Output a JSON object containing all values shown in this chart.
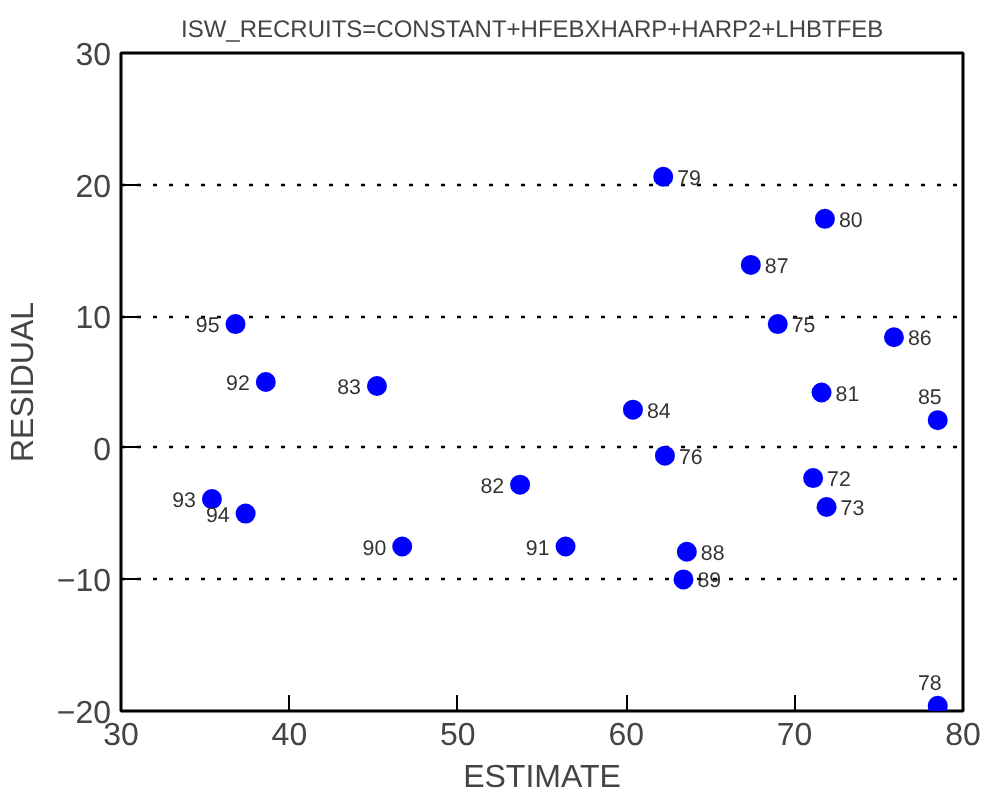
{
  "chart_data": {
    "type": "scatter",
    "title": "ISW_RECRUITS=CONSTANT+HFEBXHARP+HARP2+LHBTFEB",
    "xlabel": "ESTIMATE",
    "ylabel": "RESIDUAL",
    "xlim": [
      30,
      80
    ],
    "ylim": [
      -20,
      30
    ],
    "xticks": [
      30,
      40,
      50,
      60,
      70,
      80
    ],
    "yticks": [
      -20,
      -10,
      0,
      10,
      20,
      30
    ],
    "grid": "y",
    "marker": "circle",
    "series": [
      {
        "color": "#0000ff",
        "x": [
          36.8,
          38.6,
          45.2,
          35.4,
          37.4,
          46.7,
          62.2,
          71.8,
          67.4,
          69.0,
          75.9,
          71.6,
          78.5,
          60.4,
          62.3,
          53.7,
          71.1,
          71.9,
          56.4,
          63.6,
          63.4,
          78.5
        ],
        "values": [
          9.4,
          5.0,
          4.7,
          -3.9,
          -5.0,
          -7.5,
          20.6,
          17.4,
          13.9,
          9.4,
          8.4,
          4.2,
          2.1,
          2.9,
          -0.6,
          -2.8,
          -2.3,
          -4.5,
          -7.5,
          -7.9,
          -10.0,
          -19.6
        ]
      }
    ],
    "annotations": [
      {
        "text": "95",
        "x": 36.8,
        "y": 9.4
      },
      {
        "text": "92",
        "x": 38.6,
        "y": 5.0
      },
      {
        "text": "83",
        "x": 45.2,
        "y": 4.7
      },
      {
        "text": "93",
        "x": 35.4,
        "y": -3.9
      },
      {
        "text": "94",
        "x": 37.4,
        "y": -5.0
      },
      {
        "text": "90",
        "x": 46.7,
        "y": -7.5
      },
      {
        "text": "79",
        "x": 62.2,
        "y": 20.6
      },
      {
        "text": "80",
        "x": 71.8,
        "y": 17.4
      },
      {
        "text": "87",
        "x": 67.4,
        "y": 13.9
      },
      {
        "text": "75",
        "x": 69.0,
        "y": 9.4
      },
      {
        "text": "86",
        "x": 75.9,
        "y": 8.4
      },
      {
        "text": "81",
        "x": 71.6,
        "y": 4.2
      },
      {
        "text": "85",
        "x": 78.5,
        "y": 2.1
      },
      {
        "text": "84",
        "x": 60.4,
        "y": 2.9
      },
      {
        "text": "76",
        "x": 62.3,
        "y": -0.6
      },
      {
        "text": "82",
        "x": 53.7,
        "y": -2.8
      },
      {
        "text": "72",
        "x": 71.1,
        "y": -2.3
      },
      {
        "text": "73",
        "x": 71.9,
        "y": -4.5
      },
      {
        "text": "91",
        "x": 56.4,
        "y": -7.5
      },
      {
        "text": "88",
        "x": 63.6,
        "y": -7.9
      },
      {
        "text": "89",
        "x": 63.4,
        "y": -10.0
      },
      {
        "text": "78",
        "x": 78.5,
        "y": -19.6
      }
    ]
  }
}
